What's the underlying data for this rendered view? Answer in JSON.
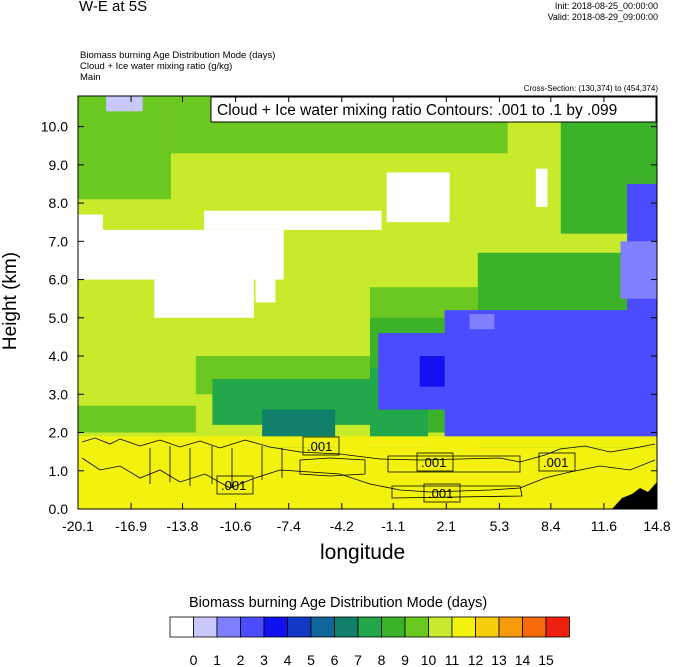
{
  "header": {
    "title": "W-E at 5S",
    "init": "Init: 2018-08-25_00:00:00",
    "valid": "Valid: 2018-08-29_09:00:00",
    "lines": [
      "Biomass burning Age Distribution Mode   (days)",
      "Cloud + Ice water mixing ratio   (g/kg)",
      "Main"
    ],
    "cross_section": "Cross-Section: (130,374) to (454,374)"
  },
  "chart_data": {
    "type": "heatmap",
    "contour_title": "Cloud + Ice water mixing ratio Contours: .001 to .1 by .099",
    "contour_labels": [
      ".001",
      ".001",
      ".001",
      ".001",
      ".001"
    ],
    "xlabel": "longitude",
    "ylabel": "Height (km)",
    "x_ticks": [
      "-20.1",
      "-16.9",
      "-13.8",
      "-10.6",
      "-7.4",
      "-4.2",
      "-1.1",
      "2.1",
      "5.3",
      "8.4",
      "11.6",
      "14.8"
    ],
    "y_ticks": [
      "0.0",
      "1.0",
      "2.0",
      "3.0",
      "4.0",
      "5.0",
      "6.0",
      "7.0",
      "8.0",
      "9.0",
      "10.0"
    ],
    "xlim": [
      -20.1,
      14.8
    ],
    "ylim": [
      0,
      10.8
    ],
    "colorbar": {
      "title": "Biomass burning Age Distribution Mode  (days)",
      "labels": [
        "0",
        "1",
        "2",
        "3",
        "4",
        "5",
        "6",
        "7",
        "8",
        "9",
        "10",
        "11",
        "12",
        "13",
        "14",
        "15"
      ],
      "colors": [
        "#ffffff",
        "#c8c8ff",
        "#8080ff",
        "#4b4bff",
        "#1010f0",
        "#1238c4",
        "#10669a",
        "#10806a",
        "#22a84a",
        "#3cb12a",
        "#6ac820",
        "#c7ea2a",
        "#f2f20e",
        "#f7cd0c",
        "#f79b0a",
        "#f66a08",
        "#f02010"
      ]
    },
    "regions": [
      {
        "age": 11.5,
        "x": [
          -20.1,
          14.8
        ],
        "y": [
          0,
          10.8
        ]
      },
      {
        "age": 10.5,
        "x": [
          -20.1,
          -14.5
        ],
        "y": [
          8.1,
          10.8
        ]
      },
      {
        "age": 10.5,
        "x": [
          -14.5,
          5.8
        ],
        "y": [
          9.3,
          10.8
        ]
      },
      {
        "age": 9.5,
        "x": [
          9.0,
          14.8
        ],
        "y": [
          7.2,
          10.8
        ]
      },
      {
        "age": 1.5,
        "x": [
          -18.4,
          -16.2
        ],
        "y": [
          10.4,
          10.8
        ]
      },
      {
        "age": 0.5,
        "x": [
          -20.1,
          -7.7
        ],
        "y": [
          6.0,
          7.3
        ]
      },
      {
        "age": 0.5,
        "x": [
          -20.1,
          -18.6
        ],
        "y": [
          7.0,
          7.7
        ]
      },
      {
        "age": 0.5,
        "x": [
          -15.5,
          -9.5
        ],
        "y": [
          5.0,
          6.0
        ]
      },
      {
        "age": 0.5,
        "x": [
          -9.4,
          -8.2
        ],
        "y": [
          5.4,
          6.0
        ]
      },
      {
        "age": 0.5,
        "x": [
          -12.5,
          -1.8
        ],
        "y": [
          7.3,
          7.8
        ]
      },
      {
        "age": 0.5,
        "x": [
          -1.5,
          2.3
        ],
        "y": [
          7.5,
          8.8
        ]
      },
      {
        "age": 0.5,
        "x": [
          7.5,
          8.2
        ],
        "y": [
          7.9,
          8.9
        ]
      },
      {
        "age": 10.5,
        "x": [
          -13.0,
          -2.5
        ],
        "y": [
          3.0,
          4.0
        ]
      },
      {
        "age": 10.5,
        "x": [
          -2.5,
          4.0
        ],
        "y": [
          2.2,
          5.8
        ]
      },
      {
        "age": 9.5,
        "x": [
          4.0,
          14.8
        ],
        "y": [
          1.3,
          6.7
        ]
      },
      {
        "age": 9.5,
        "x": [
          -2.5,
          2.0
        ],
        "y": [
          2.0,
          5.0
        ]
      },
      {
        "age": 8.5,
        "x": [
          -12.0,
          -2.5
        ],
        "y": [
          2.2,
          3.4
        ]
      },
      {
        "age": 8.5,
        "x": [
          -2.5,
          1.0
        ],
        "y": [
          1.6,
          3.7
        ]
      },
      {
        "age": 7.5,
        "x": [
          -9.0,
          -4.6
        ],
        "y": [
          1.5,
          2.6
        ]
      },
      {
        "age": 10.5,
        "x": [
          -20.1,
          -13.0
        ],
        "y": [
          2.0,
          2.7
        ]
      },
      {
        "age": 3.5,
        "x": [
          -2.0,
          14.8
        ],
        "y": [
          2.6,
          4.6
        ]
      },
      {
        "age": 3.5,
        "x": [
          2.0,
          14.8
        ],
        "y": [
          1.8,
          5.2
        ]
      },
      {
        "age": 3.5,
        "x": [
          13.0,
          14.8
        ],
        "y": [
          5.0,
          8.5
        ]
      },
      {
        "age": 2.5,
        "x": [
          3.5,
          5.0
        ],
        "y": [
          4.7,
          5.1
        ]
      },
      {
        "age": 2.5,
        "x": [
          12.6,
          14.8
        ],
        "y": [
          5.5,
          7.0
        ]
      },
      {
        "age": 4.5,
        "x": [
          0.5,
          2.0
        ],
        "y": [
          3.2,
          4.0
        ]
      },
      {
        "age": 12.5,
        "x": [
          -20.1,
          14.8
        ],
        "y": [
          0,
          1.6
        ]
      },
      {
        "age": 12.5,
        "x": [
          -20.1,
          14.8
        ],
        "y": [
          1.6,
          1.9
        ]
      }
    ]
  }
}
